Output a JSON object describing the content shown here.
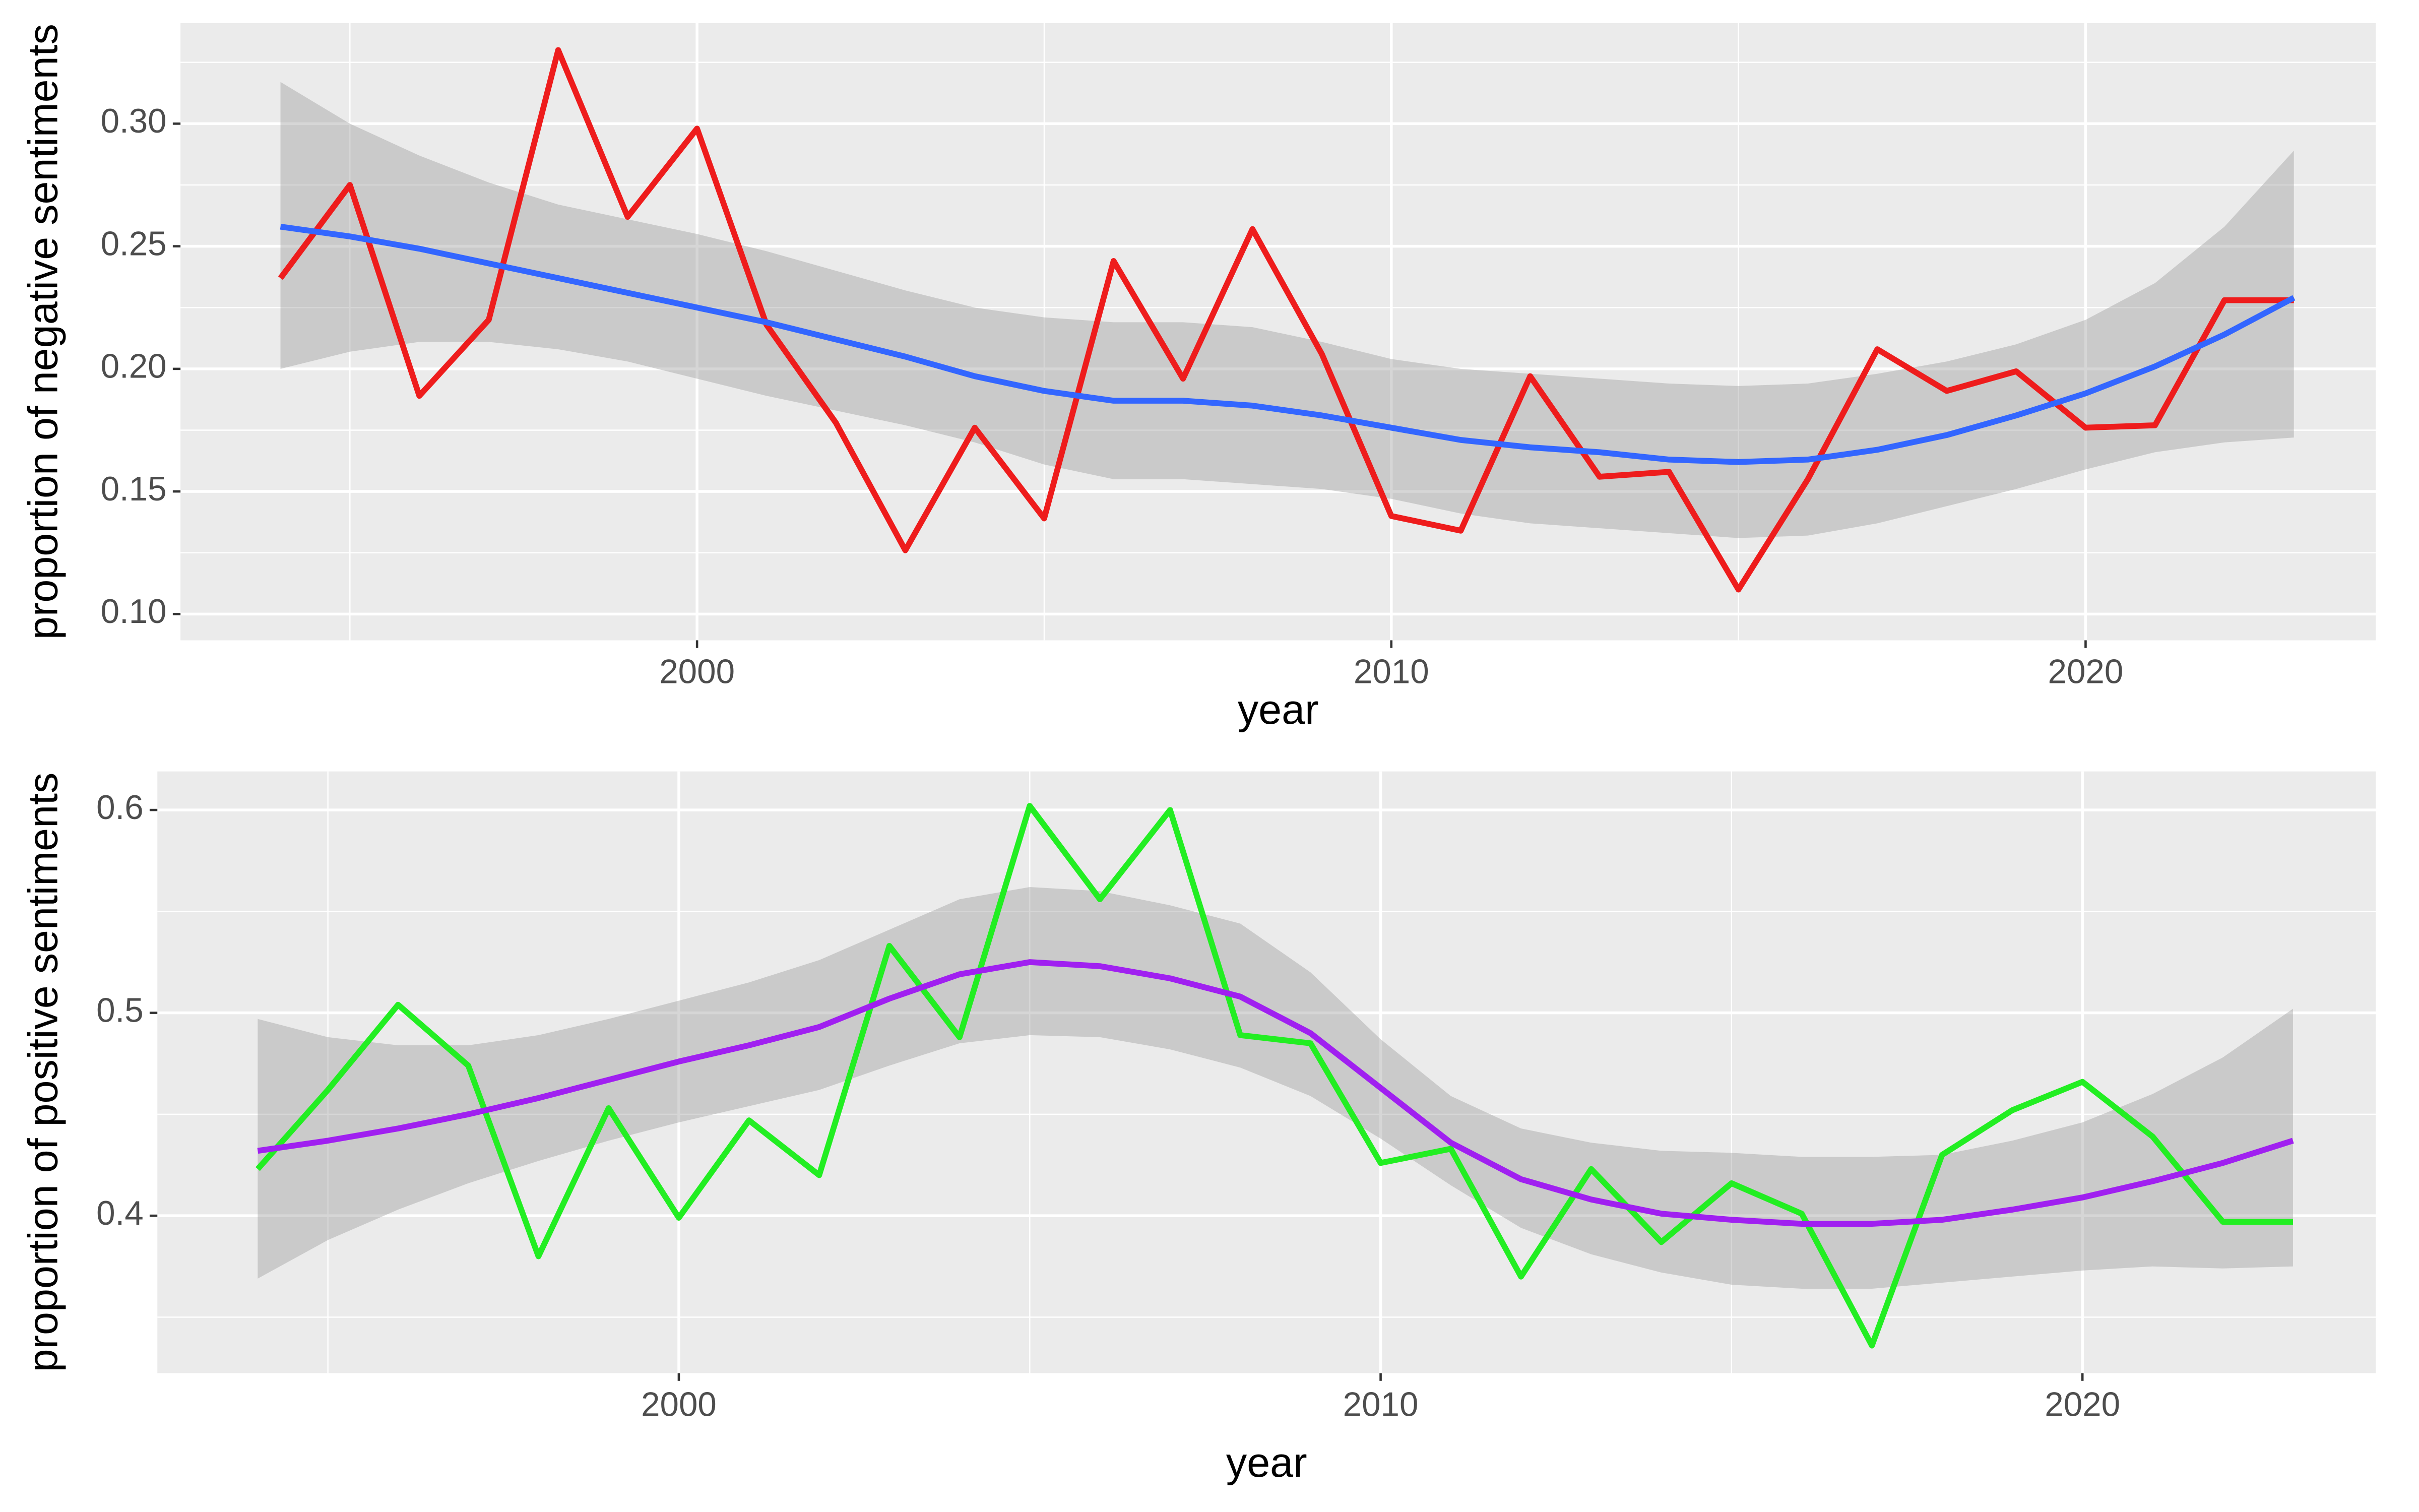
{
  "chart_data": [
    {
      "type": "line",
      "x_label": "year",
      "y_label": "proportion of negative sentiments",
      "x": [
        1994,
        1995,
        1996,
        1997,
        1998,
        1999,
        2000,
        2001,
        2002,
        2003,
        2004,
        2005,
        2006,
        2007,
        2008,
        2009,
        2010,
        2011,
        2012,
        2013,
        2014,
        2015,
        2016,
        2017,
        2018,
        2019,
        2020,
        2021,
        2022,
        2023
      ],
      "xlim": [
        1992.56,
        2024.18
      ],
      "ylim": [
        0.0893,
        0.341
      ],
      "xticks": [
        2000,
        2010,
        2020
      ],
      "yticks": [
        {
          "value": 0.1,
          "label": "0.10"
        },
        {
          "value": 0.15,
          "label": "0.15"
        },
        {
          "value": 0.2,
          "label": "0.20"
        },
        {
          "value": 0.25,
          "label": "0.25"
        },
        {
          "value": 0.3,
          "label": "0.30"
        }
      ],
      "grid": true,
      "band": {
        "color": "#999999",
        "lower": [
          0.2,
          0.207,
          0.211,
          0.211,
          0.208,
          0.203,
          0.196,
          0.189,
          0.183,
          0.177,
          0.17,
          0.161,
          0.155,
          0.155,
          0.153,
          0.151,
          0.147,
          0.141,
          0.137,
          0.135,
          0.133,
          0.131,
          0.132,
          0.137,
          0.144,
          0.151,
          0.159,
          0.166,
          0.17,
          0.172
        ],
        "upper": [
          0.317,
          0.3,
          0.287,
          0.276,
          0.267,
          0.261,
          0.255,
          0.248,
          0.24,
          0.232,
          0.225,
          0.221,
          0.219,
          0.219,
          0.217,
          0.211,
          0.204,
          0.2,
          0.198,
          0.196,
          0.194,
          0.193,
          0.194,
          0.198,
          0.203,
          0.21,
          0.22,
          0.235,
          0.258,
          0.289
        ]
      },
      "series": [
        {
          "color": "#ee1c1c",
          "values": [
            0.237,
            0.275,
            0.189,
            0.22,
            0.33,
            0.262,
            0.298,
            0.218,
            0.178,
            0.126,
            0.176,
            0.139,
            0.244,
            0.196,
            0.257,
            0.206,
            0.14,
            0.134,
            0.197,
            0.156,
            0.158,
            0.11,
            0.155,
            0.208,
            0.191,
            0.199,
            0.176,
            0.177,
            0.228,
            0.228
          ]
        },
        {
          "color": "#3366ff",
          "values": [
            0.258,
            0.254,
            0.249,
            0.243,
            0.237,
            0.231,
            0.225,
            0.219,
            0.212,
            0.205,
            0.197,
            0.191,
            0.187,
            0.187,
            0.185,
            0.181,
            0.176,
            0.171,
            0.168,
            0.166,
            0.163,
            0.162,
            0.163,
            0.167,
            0.173,
            0.181,
            0.19,
            0.201,
            0.214,
            0.229
          ]
        }
      ]
    },
    {
      "type": "line",
      "x_label": "year",
      "y_label": "proportion of positive sentiments",
      "x": [
        1994,
        1995,
        1996,
        1997,
        1998,
        1999,
        2000,
        2001,
        2002,
        2003,
        2004,
        2005,
        2006,
        2007,
        2008,
        2009,
        2010,
        2011,
        2012,
        2013,
        2014,
        2015,
        2016,
        2017,
        2018,
        2019,
        2020,
        2021,
        2022,
        2023
      ],
      "xlim": [
        1992.57,
        2024.18
      ],
      "ylim": [
        0.3224,
        0.619
      ],
      "xticks": [
        2000,
        2010,
        2020
      ],
      "yticks": [
        0.4,
        0.5,
        0.6
      ],
      "grid": true,
      "band": {
        "color": "#999999",
        "lower": [
          0.369,
          0.388,
          0.403,
          0.416,
          0.427,
          0.437,
          0.446,
          0.454,
          0.462,
          0.474,
          0.485,
          0.489,
          0.488,
          0.482,
          0.473,
          0.459,
          0.438,
          0.415,
          0.394,
          0.381,
          0.372,
          0.366,
          0.364,
          0.364,
          0.367,
          0.37,
          0.373,
          0.375,
          0.374,
          0.375
        ],
        "upper": [
          0.497,
          0.488,
          0.484,
          0.484,
          0.489,
          0.497,
          0.506,
          0.515,
          0.526,
          0.541,
          0.556,
          0.562,
          0.56,
          0.553,
          0.544,
          0.52,
          0.487,
          0.459,
          0.443,
          0.436,
          0.432,
          0.431,
          0.429,
          0.429,
          0.43,
          0.437,
          0.446,
          0.46,
          0.478,
          0.502
        ]
      },
      "series": [
        {
          "color": "#22ee22",
          "values": [
            0.423,
            0.462,
            0.504,
            0.474,
            0.38,
            0.453,
            0.399,
            0.447,
            0.42,
            0.533,
            0.488,
            0.602,
            0.556,
            0.6,
            0.489,
            0.485,
            0.426,
            0.433,
            0.37,
            0.423,
            0.387,
            0.416,
            0.401,
            0.336,
            0.43,
            0.452,
            0.466,
            0.439,
            0.397,
            0.397
          ]
        },
        {
          "color": "#a020f0",
          "values": [
            0.432,
            0.437,
            0.443,
            0.45,
            0.458,
            0.467,
            0.476,
            0.484,
            0.493,
            0.507,
            0.519,
            0.525,
            0.523,
            0.517,
            0.508,
            0.49,
            0.463,
            0.436,
            0.418,
            0.408,
            0.401,
            0.398,
            0.396,
            0.396,
            0.398,
            0.403,
            0.409,
            0.417,
            0.426,
            0.437
          ]
        }
      ]
    }
  ]
}
